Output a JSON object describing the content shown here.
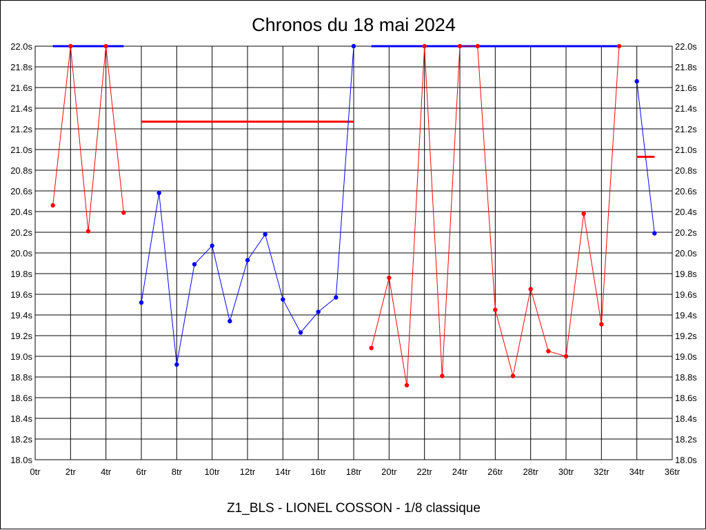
{
  "chart_data": {
    "type": "line",
    "title": "Chronos du 18 mai 2024",
    "subtitle": "Z1_BLS - LIONEL COSSON - 1/8 classique",
    "xlabel": "",
    "ylabel": "",
    "xlim": [
      0,
      36
    ],
    "ylim": [
      18.0,
      22.0
    ],
    "grid": true,
    "x_tick_labels": [
      "0tr",
      "2tr",
      "4tr",
      "6tr",
      "8tr",
      "10tr",
      "12tr",
      "14tr",
      "16tr",
      "18tr",
      "20tr",
      "22tr",
      "24tr",
      "26tr",
      "28tr",
      "30tr",
      "32tr",
      "34tr",
      "36tr"
    ],
    "y_tick_labels": [
      "18.0s",
      "18.2s",
      "18.4s",
      "18.6s",
      "18.8s",
      "19.0s",
      "19.2s",
      "19.4s",
      "19.6s",
      "19.8s",
      "20.0s",
      "20.2s",
      "20.4s",
      "20.6s",
      "20.8s",
      "21.0s",
      "21.2s",
      "21.4s",
      "21.6s",
      "21.8s",
      "22.0s"
    ],
    "colors": {
      "red": "#ff0000",
      "blue": "#0000ff"
    },
    "series": [
      {
        "color": "red",
        "x": [
          1,
          2,
          3,
          4,
          5
        ],
        "y": [
          20.46,
          22.0,
          20.21,
          22.0,
          20.39
        ]
      },
      {
        "color": "blue",
        "x": [
          6,
          7,
          8,
          9,
          10,
          11,
          12,
          13,
          14,
          15,
          16,
          17,
          18
        ],
        "y": [
          19.52,
          20.58,
          18.92,
          19.89,
          20.07,
          19.34,
          19.93,
          20.18,
          19.55,
          19.23,
          19.43,
          19.57,
          22.0
        ]
      },
      {
        "color": "red",
        "x": [
          19,
          20,
          21,
          22,
          23,
          24,
          25,
          26,
          27,
          28,
          29,
          30,
          31,
          32,
          33
        ],
        "y": [
          19.08,
          19.76,
          18.72,
          22.0,
          18.81,
          22.0,
          22.0,
          19.45,
          18.81,
          19.65,
          19.05,
          19.0,
          20.38,
          19.31,
          22.0
        ]
      },
      {
        "color": "blue",
        "x": [
          34,
          35
        ],
        "y": [
          21.66,
          20.19
        ]
      }
    ],
    "averages": [
      {
        "color": "blue",
        "x": [
          1,
          5
        ],
        "y": 22.0
      },
      {
        "color": "red",
        "x": [
          6,
          18
        ],
        "y": 21.27
      },
      {
        "color": "blue",
        "x": [
          19,
          33
        ],
        "y": 22.0
      },
      {
        "color": "red",
        "x": [
          34,
          35
        ],
        "y": 20.93
      }
    ]
  }
}
